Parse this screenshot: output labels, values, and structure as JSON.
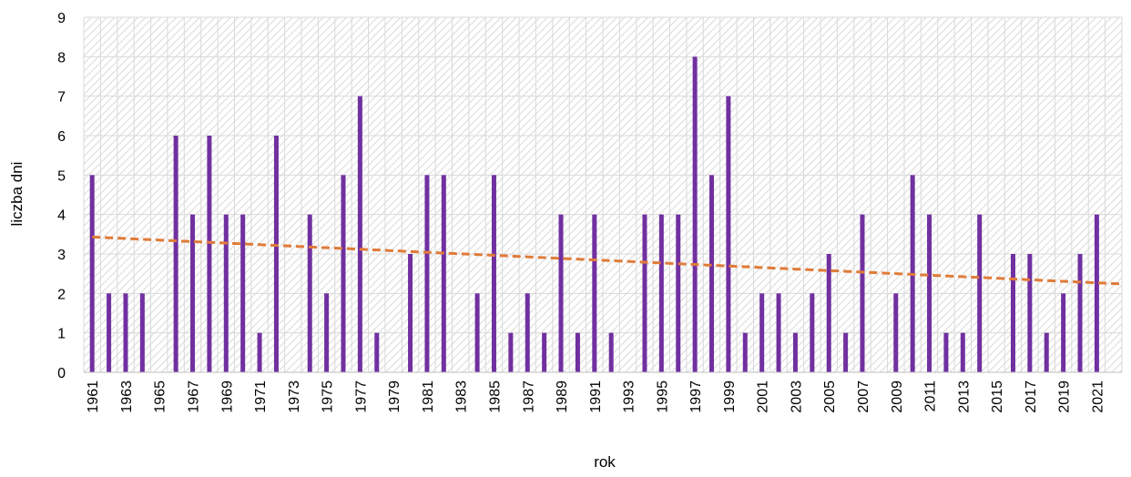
{
  "chart_data": {
    "type": "bar",
    "title": "",
    "xlabel": "rok",
    "ylabel": "liczba dni",
    "ylim": [
      0,
      9
    ],
    "y_ticks": [
      "0",
      "1",
      "2",
      "3",
      "4",
      "5",
      "6",
      "7",
      "8",
      "9"
    ],
    "grid": "on",
    "legend": "none",
    "x_tick_labels": [
      "1961",
      "1963",
      "1965",
      "1967",
      "1969",
      "1971",
      "1973",
      "1975",
      "1977",
      "1979",
      "1981",
      "1983",
      "1985",
      "1987",
      "1989",
      "1991",
      "1993",
      "1995",
      "1997",
      "1999",
      "2001",
      "2003",
      "2005",
      "2007",
      "2009",
      "2011",
      "2013",
      "2015",
      "2017",
      "2019",
      "2021"
    ],
    "categories": [
      "1961",
      "1962",
      "1963",
      "1964",
      "1965",
      "1966",
      "1967",
      "1968",
      "1969",
      "1970",
      "1971",
      "1972",
      "1973",
      "1974",
      "1975",
      "1976",
      "1977",
      "1978",
      "1979",
      "1980",
      "1981",
      "1982",
      "1983",
      "1984",
      "1985",
      "1986",
      "1987",
      "1988",
      "1989",
      "1990",
      "1991",
      "1992",
      "1993",
      "1994",
      "1995",
      "1996",
      "1997",
      "1998",
      "1999",
      "2000",
      "2001",
      "2002",
      "2003",
      "2004",
      "2005",
      "2006",
      "2007",
      "2008",
      "2009",
      "2010",
      "2011",
      "2012",
      "2013",
      "2014",
      "2015",
      "2016",
      "2017",
      "2018",
      "2019",
      "2020",
      "2021",
      "2022"
    ],
    "values": [
      5,
      2,
      2,
      2,
      0,
      6,
      4,
      6,
      4,
      4,
      1,
      6,
      0,
      4,
      2,
      5,
      7,
      1,
      0,
      3,
      5,
      5,
      0,
      2,
      5,
      1,
      2,
      1,
      4,
      1,
      4,
      1,
      0,
      4,
      4,
      4,
      8,
      5,
      7,
      1,
      2,
      2,
      1,
      2,
      3,
      1,
      4,
      0,
      2,
      5,
      4,
      1,
      1,
      4,
      0,
      3,
      3,
      1,
      2,
      3,
      4,
      0
    ],
    "trendline": {
      "type": "linear",
      "start": 3.43,
      "end": 2.24
    },
    "colors": {
      "bar": "#7030a0",
      "trend": "#e07b39",
      "grid": "#d9d9d9",
      "hatch": "#dcdcdc"
    }
  }
}
